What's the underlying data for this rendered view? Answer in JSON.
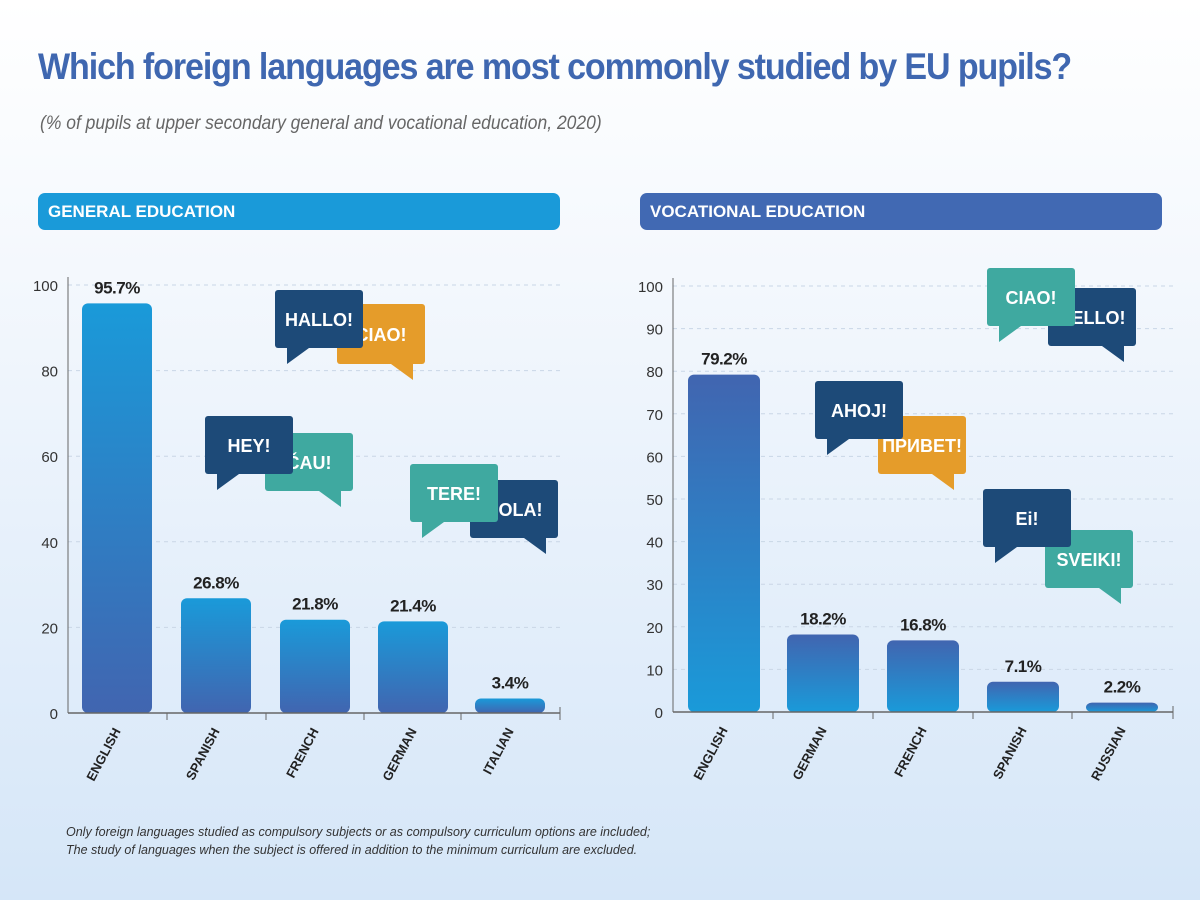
{
  "title": "Which foreign languages are most commonly studied by EU pupils?",
  "subtitle": "(% of pupils at upper secondary general and vocational education, 2020)",
  "footnote": [
    "Only foreign languages studied as compulsory subjects or as compulsory curriculum options are included;",
    "The study of languages when the subject is offered in addition to the minimum curriculum are excluded."
  ],
  "colors": {
    "title": "#3f67b0",
    "light": "#1a9ad9",
    "dark": "#3f67b0",
    "navy": "#1d4a78",
    "teal": "#3fa9a0",
    "orange": "#e59c2a"
  },
  "chart_data": [
    {
      "type": "bar",
      "title": "GENERAL EDUCATION",
      "categories": [
        "ENGLISH",
        "SPANISH",
        "FRENCH",
        "GERMAN",
        "ITALIAN"
      ],
      "values": [
        95.7,
        26.8,
        21.8,
        21.4,
        3.4
      ],
      "labels": [
        "95.7%",
        "26.8%",
        "21.8%",
        "21.4%",
        "3.4%"
      ],
      "ylim": [
        0,
        100
      ],
      "yticks": [
        0,
        20,
        40,
        60,
        80,
        100
      ],
      "grid": true,
      "bubbles": [
        {
          "text": "CIAO!",
          "color": "orange"
        },
        {
          "text": "HALLO!",
          "color": "navy"
        },
        {
          "text": "ČAU!",
          "color": "teal"
        },
        {
          "text": "HEY!",
          "color": "navy"
        },
        {
          "text": "HOLA!",
          "color": "navy"
        },
        {
          "text": "TERE!",
          "color": "teal"
        }
      ]
    },
    {
      "type": "bar",
      "title": "VOCATIONAL EDUCATION",
      "categories": [
        "ENGLISH",
        "GERMAN",
        "FRENCH",
        "SPANISH",
        "RUSSIAN"
      ],
      "values": [
        79.2,
        18.2,
        16.8,
        7.1,
        2.2
      ],
      "labels": [
        "79.2%",
        "18.2%",
        "16.8%",
        "7.1%",
        "2.2%"
      ],
      "ylim": [
        0,
        100
      ],
      "yticks": [
        0,
        10,
        20,
        30,
        40,
        50,
        60,
        70,
        80,
        90,
        100
      ],
      "grid": true,
      "bubbles": [
        {
          "text": "HELLO!",
          "color": "navy"
        },
        {
          "text": "CIAO!",
          "color": "teal"
        },
        {
          "text": "ПРИВЕТ!",
          "color": "orange"
        },
        {
          "text": "AHOJ!",
          "color": "navy"
        },
        {
          "text": "SVEIKI!",
          "color": "teal"
        },
        {
          "text": "Ei!",
          "color": "navy"
        }
      ]
    }
  ]
}
